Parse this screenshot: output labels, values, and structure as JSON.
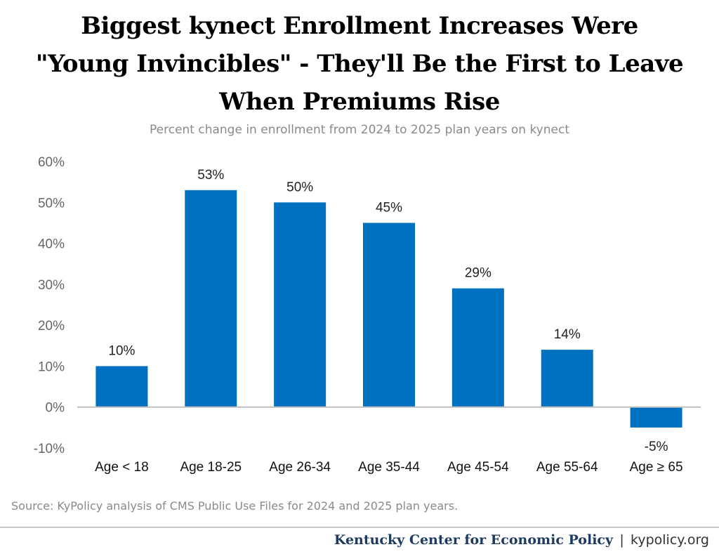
{
  "chart_data": {
    "type": "bar",
    "title": "Biggest kynect Enrollment Increases Were \"Young Invincibles\" - They'll Be the First to Leave When Premiums Rise",
    "title_lines": [
      "Biggest kynect Enrollment Increases Were",
      "\"Young Invincibles\" - They'll Be the First to Leave",
      "When Premiums Rise"
    ],
    "subtitle": "Percent change in enrollment from 2024 to 2025 plan years on kynect",
    "categories": [
      "Age < 18",
      "Age 18-25",
      "Age 26-34",
      "Age 35-44",
      "Age 45-54",
      "Age 55-64",
      "Age ≥ 65"
    ],
    "values": [
      10,
      53,
      50,
      45,
      29,
      14,
      -5
    ],
    "value_labels": [
      "10%",
      "53%",
      "50%",
      "45%",
      "29%",
      "14%",
      "-5%"
    ],
    "y_ticks": [
      -10,
      0,
      10,
      20,
      30,
      40,
      50,
      60
    ],
    "y_tick_labels": [
      "-10%",
      "0%",
      "10%",
      "20%",
      "30%",
      "40%",
      "50%",
      "60%"
    ],
    "ylim": [
      -10,
      60
    ],
    "xlabel": "",
    "ylabel": "",
    "grid": false,
    "bar_color": "#0070C0",
    "zero_line_color": "#bfbfbf"
  },
  "source": "Source: KyPolicy analysis of CMS Public Use Files for 2024 and 2025 plan years.",
  "footer": {
    "org": "Kentucky Center for Economic Policy",
    "separator": "|",
    "site": "kypolicy.org"
  }
}
